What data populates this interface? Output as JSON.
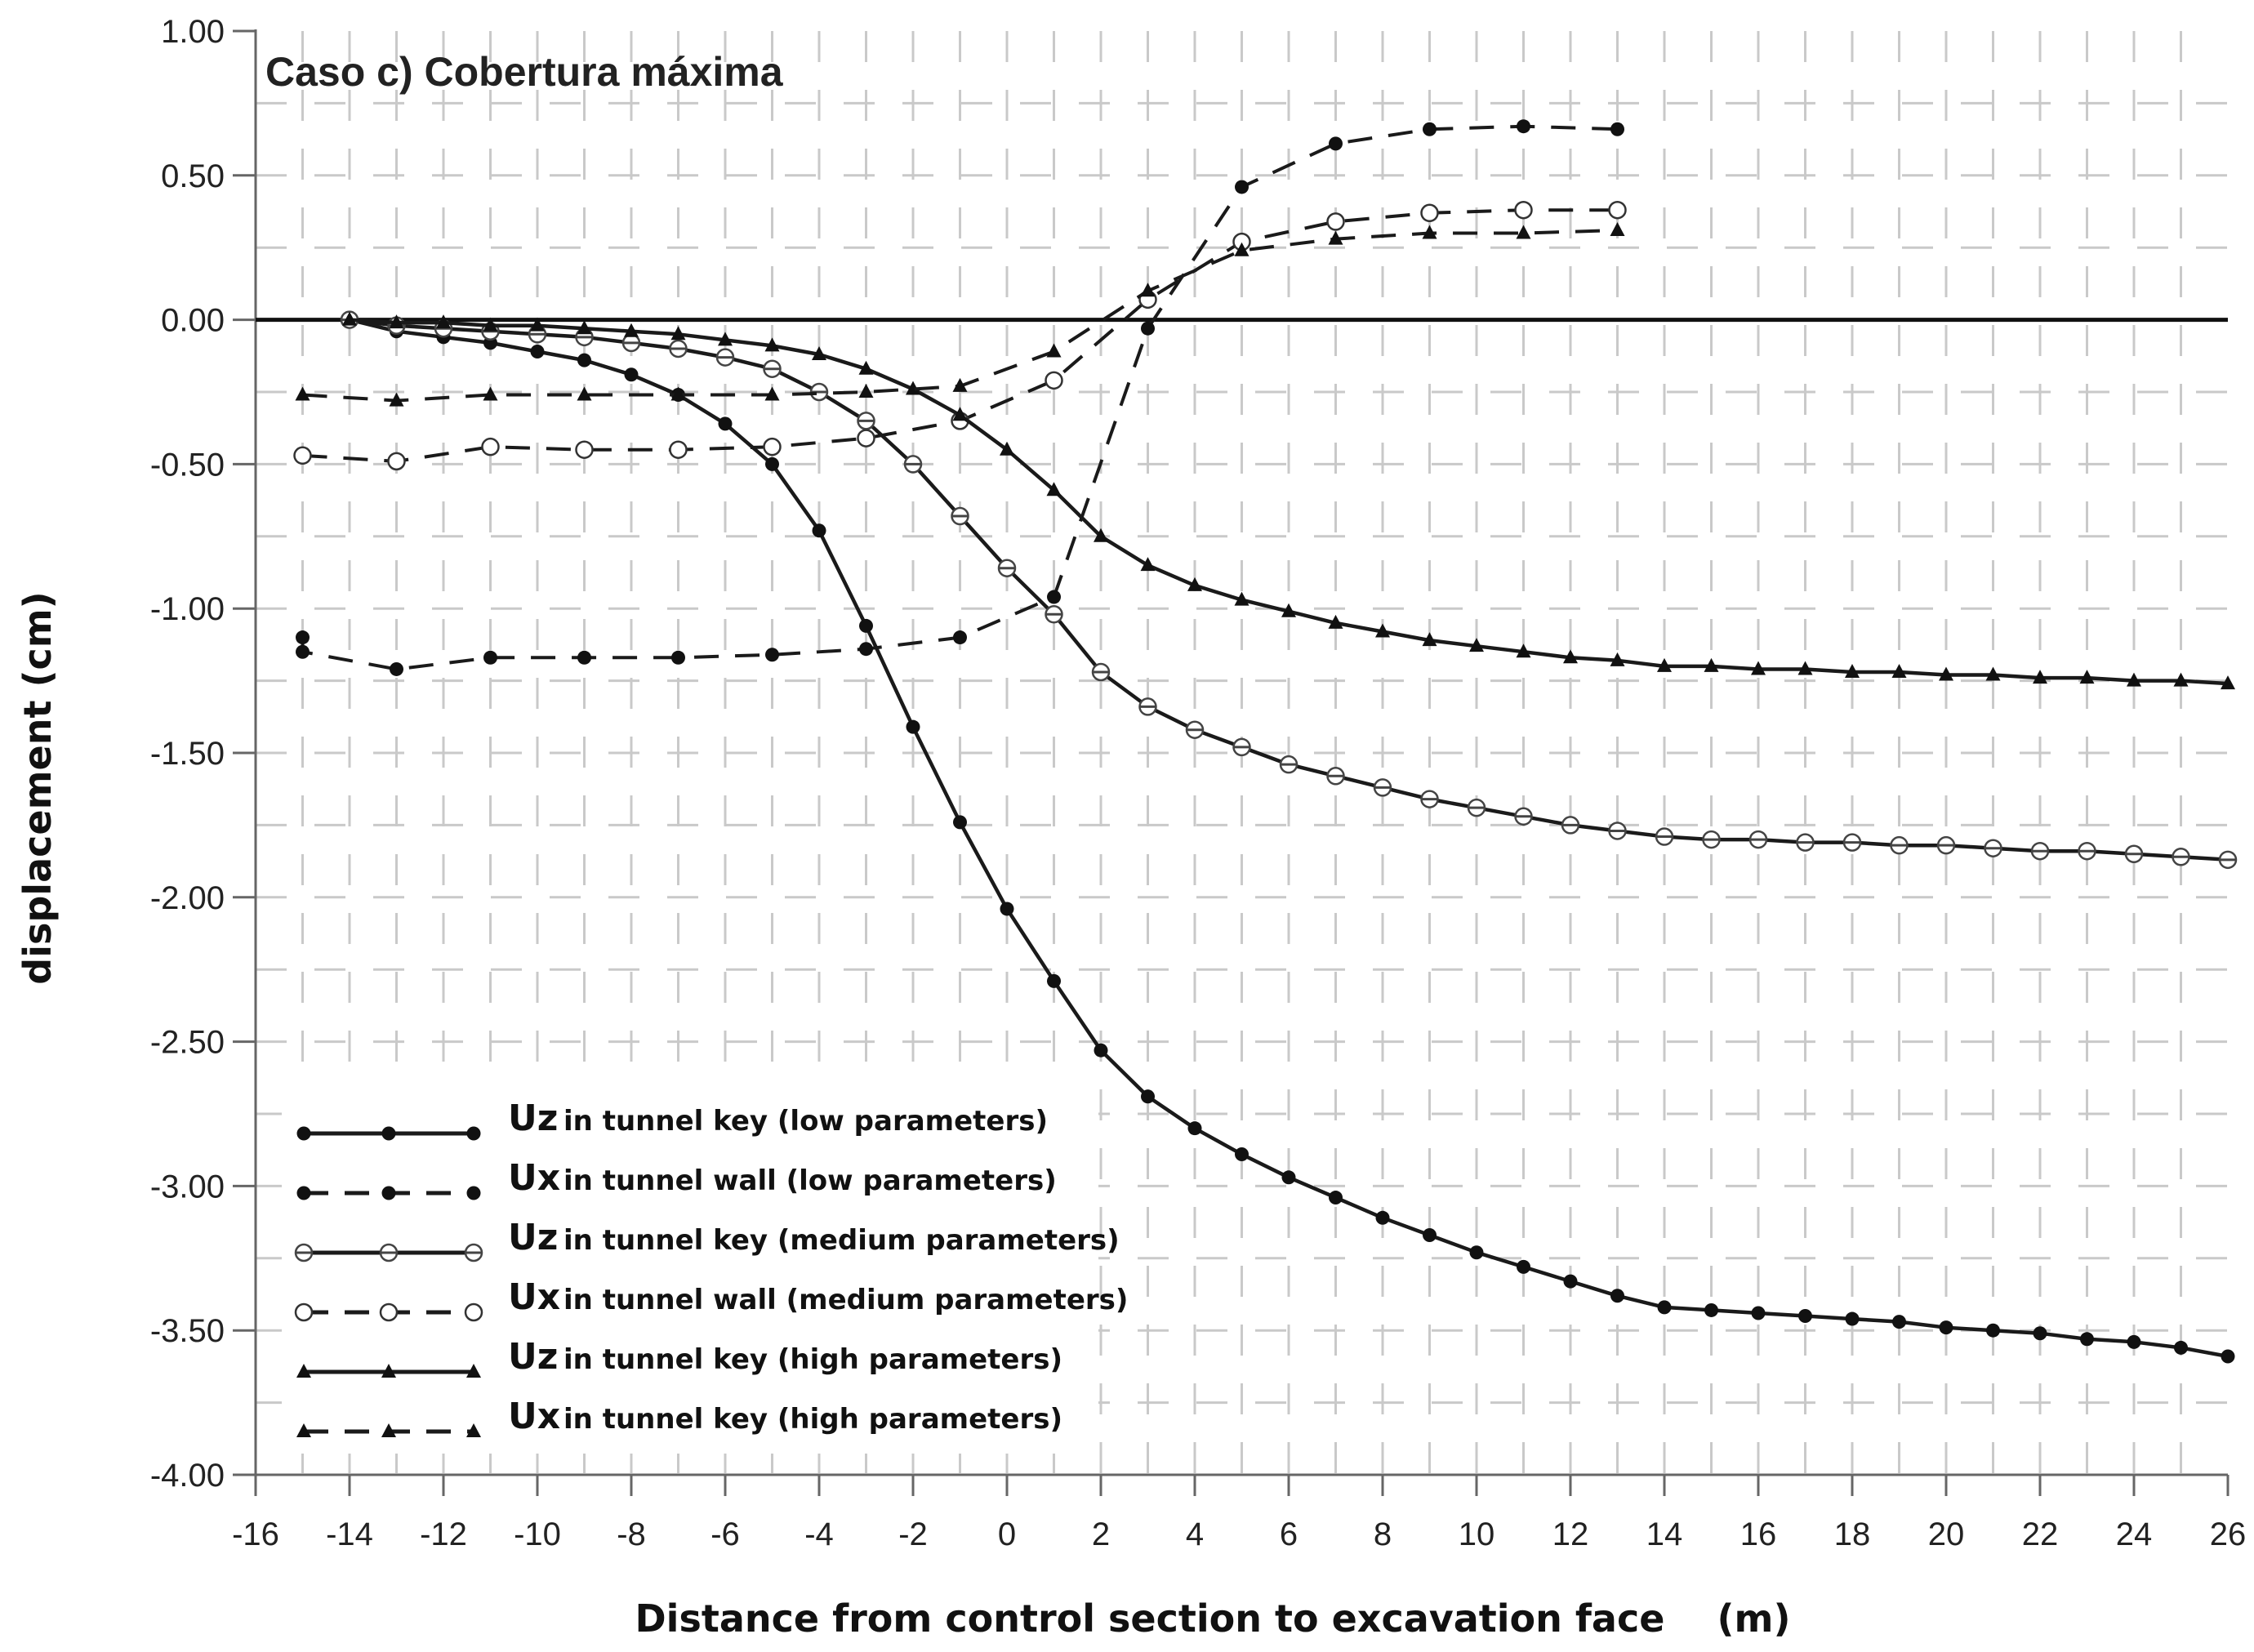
{
  "chart_data": {
    "type": "line",
    "title": "Caso c) Cobertura máxima",
    "xlabel": "Distance from control section to excavation face    (m)",
    "ylabel": "displacement (cm)",
    "xlim": [
      -16,
      26
    ],
    "ylim": [
      -4.0,
      1.0
    ],
    "xticks": [
      -16,
      -14,
      -12,
      -10,
      -8,
      -6,
      -4,
      -2,
      0,
      2,
      4,
      6,
      8,
      10,
      12,
      14,
      16,
      18,
      20,
      22,
      24,
      26
    ],
    "xtick_labels": [
      "-16",
      "-14",
      "-12",
      "-10",
      "-8",
      "-6",
      "-4",
      "-2",
      "0",
      "2",
      "4",
      "6",
      "8",
      "10",
      "12",
      "14",
      "16",
      "18",
      "20",
      "22",
      "24",
      "26"
    ],
    "yticks": [
      1.0,
      0.5,
      0.0,
      -0.5,
      -1.0,
      -1.5,
      -2.0,
      -2.5,
      -3.0,
      -3.5,
      -4.0
    ],
    "ytick_labels": [
      "1.00",
      "0.50",
      "0.00",
      "-0.50",
      "-1.00",
      "-1.50",
      "-2.00",
      "-2.50",
      "-3.00",
      "-3.50",
      "-4.00"
    ],
    "grid": true,
    "legend_position": "bottom-left",
    "series": [
      {
        "name": "in tunnel key (low parameters)",
        "symbol": "Uz",
        "line": "solid",
        "marker": "filled-circle",
        "x": [
          -14,
          -13,
          -12,
          -11,
          -10,
          -9,
          -8,
          -7,
          -6,
          -5,
          -4,
          -3,
          -2,
          -1,
          0,
          1,
          2,
          3,
          4,
          5,
          6,
          7,
          8,
          9,
          10,
          11,
          12,
          13,
          14,
          15,
          16,
          17,
          18,
          19,
          20,
          21,
          22,
          23,
          24,
          25,
          26
        ],
        "y": [
          0.0,
          -0.04,
          -0.06,
          -0.08,
          -0.11,
          -0.14,
          -0.19,
          -0.26,
          -0.36,
          -0.5,
          -0.73,
          -1.06,
          -1.41,
          -1.74,
          -2.04,
          -2.29,
          -2.53,
          -2.69,
          -2.8,
          -2.89,
          -2.97,
          -3.04,
          -3.11,
          -3.17,
          -3.23,
          -3.28,
          -3.33,
          -3.38,
          -3.42,
          -3.43,
          -3.44,
          -3.45,
          -3.46,
          -3.47,
          -3.49,
          -3.5,
          -3.51,
          -3.53,
          -3.54,
          -3.56,
          -3.59
        ]
      },
      {
        "name": "in tunnel wall (low parameters)",
        "symbol": "Ux",
        "line": "dashed",
        "marker": "filled-circle",
        "x": [
          -15,
          -15,
          -13,
          -11,
          -9,
          -7,
          -5,
          -3,
          -1,
          1,
          3,
          5,
          7,
          9,
          11,
          13
        ],
        "y": [
          -1.1,
          -1.15,
          -1.21,
          -1.17,
          -1.17,
          -1.17,
          -1.16,
          -1.14,
          -1.1,
          -0.96,
          -0.03,
          0.46,
          0.61,
          0.66,
          0.67,
          0.66
        ]
      },
      {
        "name": "in tunnel key (medium parameters)",
        "symbol": "Uz",
        "line": "solid",
        "marker": "open-circle-cross",
        "x": [
          -14,
          -13,
          -12,
          -11,
          -10,
          -9,
          -8,
          -7,
          -6,
          -5,
          -4,
          -3,
          -2,
          -1,
          0,
          1,
          2,
          3,
          4,
          5,
          6,
          7,
          8,
          9,
          10,
          11,
          12,
          13,
          14,
          15,
          16,
          17,
          18,
          19,
          20,
          21,
          22,
          23,
          24,
          25,
          26
        ],
        "y": [
          0.0,
          -0.02,
          -0.03,
          -0.04,
          -0.05,
          -0.06,
          -0.08,
          -0.1,
          -0.13,
          -0.17,
          -0.25,
          -0.35,
          -0.5,
          -0.68,
          -0.86,
          -1.02,
          -1.22,
          -1.34,
          -1.42,
          -1.48,
          -1.54,
          -1.58,
          -1.62,
          -1.66,
          -1.69,
          -1.72,
          -1.75,
          -1.77,
          -1.79,
          -1.8,
          -1.8,
          -1.81,
          -1.81,
          -1.82,
          -1.82,
          -1.83,
          -1.84,
          -1.84,
          -1.85,
          -1.86,
          -1.87
        ]
      },
      {
        "name": "in tunnel wall (medium parameters)",
        "symbol": "Ux",
        "line": "dashed",
        "marker": "open-circle",
        "x": [
          -15,
          -13,
          -11,
          -9,
          -7,
          -5,
          -3,
          -1,
          1,
          3,
          5,
          7,
          9,
          11,
          13
        ],
        "y": [
          -0.47,
          -0.49,
          -0.44,
          -0.45,
          -0.45,
          -0.44,
          -0.41,
          -0.35,
          -0.21,
          0.07,
          0.27,
          0.34,
          0.37,
          0.38,
          0.38
        ]
      },
      {
        "name": "in tunnel key (high parameters)",
        "symbol": "Uz",
        "line": "solid",
        "marker": "filled-triangle",
        "x": [
          -14,
          -13,
          -12,
          -11,
          -10,
          -9,
          -8,
          -7,
          -6,
          -5,
          -4,
          -3,
          -2,
          -1,
          0,
          1,
          2,
          3,
          4,
          5,
          6,
          7,
          8,
          9,
          10,
          11,
          12,
          13,
          14,
          15,
          16,
          17,
          18,
          19,
          20,
          21,
          22,
          23,
          24,
          25,
          26
        ],
        "y": [
          0.0,
          -0.01,
          -0.01,
          -0.02,
          -0.02,
          -0.03,
          -0.04,
          -0.05,
          -0.07,
          -0.09,
          -0.12,
          -0.17,
          -0.24,
          -0.33,
          -0.45,
          -0.59,
          -0.75,
          -0.85,
          -0.92,
          -0.97,
          -1.01,
          -1.05,
          -1.08,
          -1.11,
          -1.13,
          -1.15,
          -1.17,
          -1.18,
          -1.2,
          -1.2,
          -1.21,
          -1.21,
          -1.22,
          -1.22,
          -1.23,
          -1.23,
          -1.24,
          -1.24,
          -1.25,
          -1.25,
          -1.26
        ]
      },
      {
        "name": "in tunnel key (high parameters)",
        "symbol": "Ux",
        "line": "dashed",
        "marker": "filled-triangle",
        "x": [
          -15,
          -13,
          -11,
          -9,
          -7,
          -5,
          -3,
          -1,
          1,
          3,
          5,
          7,
          9,
          11,
          13
        ],
        "y": [
          -0.26,
          -0.28,
          -0.26,
          -0.26,
          -0.26,
          -0.26,
          -0.25,
          -0.23,
          -0.11,
          0.1,
          0.24,
          0.28,
          0.3,
          0.3,
          0.31
        ]
      }
    ]
  }
}
